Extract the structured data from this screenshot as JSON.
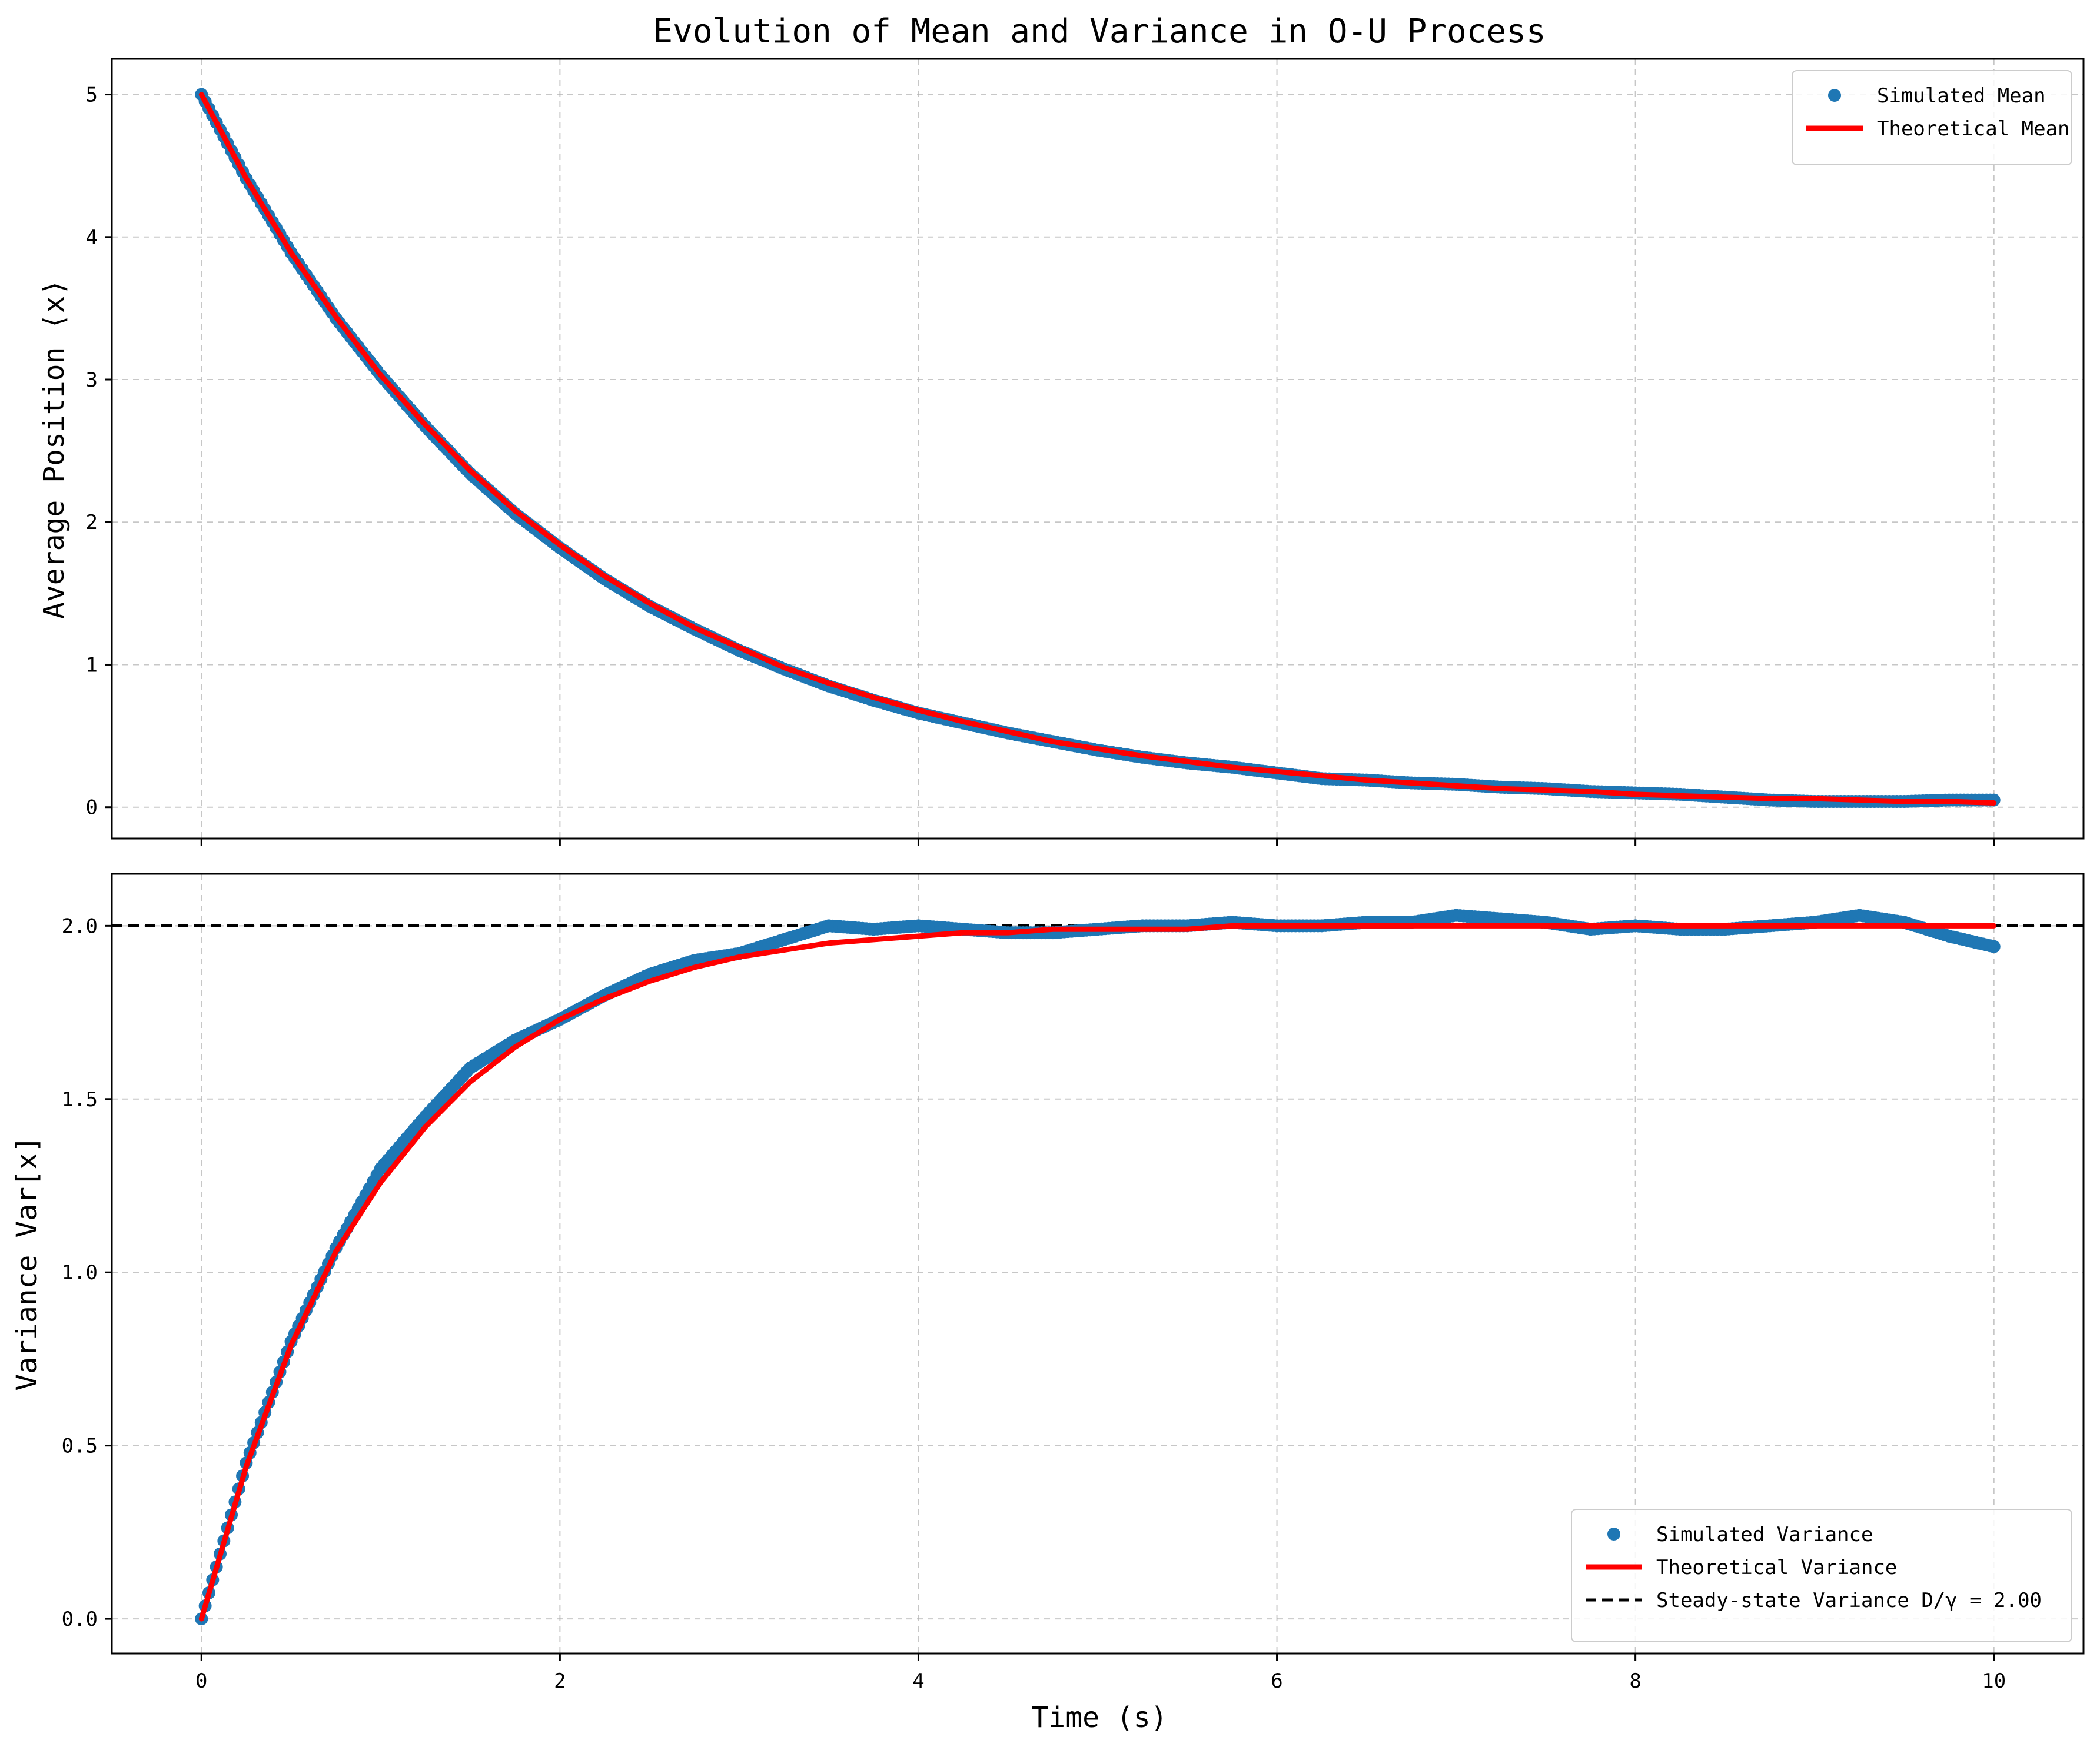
{
  "chart_data": {
    "type": "line",
    "title": "Evolution of Mean and Variance in O-U Process",
    "xlabel": "Time (s)",
    "xlim": [
      -0.5,
      10.5
    ],
    "xticks": [
      0,
      2,
      4,
      6,
      8,
      10
    ],
    "grid": true,
    "colors": {
      "simulated": "#1f77b4",
      "theoretical": "#ff0000",
      "steady_state": "#000000"
    },
    "panels": [
      {
        "ylabel": "Average Position ⟨x⟩",
        "ylim": [
          -0.22,
          5.25
        ],
        "yticks": [
          0,
          1,
          2,
          3,
          4,
          5
        ],
        "legend_placement": "upper right",
        "series": [
          {
            "name": "Simulated Mean",
            "style": "markers",
            "x": [
              0,
              0.25,
              0.5,
              0.75,
              1,
              1.25,
              1.5,
              1.75,
              2,
              2.25,
              2.5,
              2.75,
              3,
              3.25,
              3.5,
              3.75,
              4,
              4.25,
              4.5,
              4.75,
              5,
              5.25,
              5.5,
              5.75,
              6,
              6.25,
              6.5,
              6.75,
              7,
              7.25,
              7.5,
              7.75,
              8,
              8.25,
              8.5,
              8.75,
              9,
              9.25,
              9.5,
              9.75,
              10
            ],
            "y": [
              5.0,
              4.41,
              3.89,
              3.43,
              3.03,
              2.67,
              2.34,
              2.06,
              1.82,
              1.6,
              1.41,
              1.25,
              1.1,
              0.97,
              0.85,
              0.75,
              0.66,
              0.59,
              0.52,
              0.46,
              0.4,
              0.35,
              0.31,
              0.28,
              0.24,
              0.2,
              0.19,
              0.17,
              0.16,
              0.14,
              0.13,
              0.11,
              0.1,
              0.09,
              0.07,
              0.05,
              0.04,
              0.04,
              0.04,
              0.05,
              0.05
            ]
          },
          {
            "name": "Theoretical Mean",
            "style": "line",
            "x": [
              0,
              0.25,
              0.5,
              0.75,
              1,
              1.25,
              1.5,
              1.75,
              2,
              2.25,
              2.5,
              2.75,
              3,
              3.25,
              3.5,
              3.75,
              4,
              4.25,
              4.5,
              4.75,
              5,
              5.25,
              5.5,
              5.75,
              6,
              6.25,
              6.5,
              6.75,
              7,
              7.25,
              7.5,
              7.75,
              8,
              8.25,
              8.5,
              8.75,
              9,
              9.25,
              9.5,
              9.75,
              10
            ],
            "y": [
              5.0,
              4.41,
              3.89,
              3.44,
              3.03,
              2.68,
              2.36,
              2.08,
              1.84,
              1.62,
              1.43,
              1.26,
              1.12,
              0.98,
              0.87,
              0.77,
              0.68,
              0.6,
              0.53,
              0.46,
              0.41,
              0.36,
              0.32,
              0.28,
              0.25,
              0.22,
              0.19,
              0.17,
              0.15,
              0.13,
              0.12,
              0.11,
              0.09,
              0.08,
              0.07,
              0.06,
              0.06,
              0.05,
              0.04,
              0.04,
              0.03
            ]
          }
        ]
      },
      {
        "ylabel": "Variance Var[x]",
        "ylim": [
          -0.1,
          2.15
        ],
        "yticks": [
          0.0,
          0.5,
          1.0,
          1.5,
          2.0
        ],
        "legend_placement": "lower right",
        "series": [
          {
            "name": "Simulated Variance",
            "style": "markers",
            "x": [
              0,
              0.25,
              0.5,
              0.75,
              1,
              1.25,
              1.5,
              1.75,
              2,
              2.25,
              2.5,
              2.75,
              3,
              3.25,
              3.5,
              3.75,
              4,
              4.25,
              4.5,
              4.75,
              5,
              5.25,
              5.5,
              5.75,
              6,
              6.25,
              6.5,
              6.75,
              7,
              7.25,
              7.5,
              7.75,
              8,
              8.25,
              8.5,
              8.75,
              9,
              9.25,
              9.5,
              9.75,
              10
            ],
            "y": [
              0.0,
              0.45,
              0.8,
              1.07,
              1.3,
              1.45,
              1.59,
              1.67,
              1.73,
              1.8,
              1.86,
              1.9,
              1.92,
              1.96,
              2.0,
              1.99,
              2.0,
              1.99,
              1.98,
              1.98,
              1.99,
              2.0,
              2.0,
              2.01,
              2.0,
              2.0,
              2.01,
              2.01,
              2.03,
              2.02,
              2.01,
              1.99,
              2.0,
              1.99,
              1.99,
              2.0,
              2.01,
              2.03,
              2.01,
              1.97,
              1.94
            ]
          },
          {
            "name": "Theoretical Variance",
            "style": "line",
            "x": [
              0,
              0.25,
              0.5,
              0.75,
              1,
              1.25,
              1.5,
              1.75,
              2,
              2.25,
              2.5,
              2.75,
              3,
              3.25,
              3.5,
              3.75,
              4,
              4.25,
              4.5,
              4.75,
              5,
              5.25,
              5.5,
              5.75,
              6,
              6.25,
              6.5,
              6.75,
              7,
              7.25,
              7.5,
              7.75,
              8,
              8.25,
              8.5,
              8.75,
              9,
              9.25,
              9.5,
              9.75,
              10
            ],
            "y": [
              0.0,
              0.44,
              0.79,
              1.06,
              1.26,
              1.42,
              1.55,
              1.65,
              1.73,
              1.79,
              1.84,
              1.88,
              1.91,
              1.93,
              1.95,
              1.96,
              1.97,
              1.98,
              1.98,
              1.99,
              1.99,
              1.99,
              1.99,
              2.0,
              2.0,
              2.0,
              2.0,
              2.0,
              2.0,
              2.0,
              2.0,
              2.0,
              2.0,
              2.0,
              2.0,
              2.0,
              2.0,
              2.0,
              2.0,
              2.0,
              2.0
            ]
          },
          {
            "name": "Steady-state Variance D/γ = 2.00",
            "style": "dashed",
            "y": 2.0
          }
        ]
      }
    ]
  }
}
